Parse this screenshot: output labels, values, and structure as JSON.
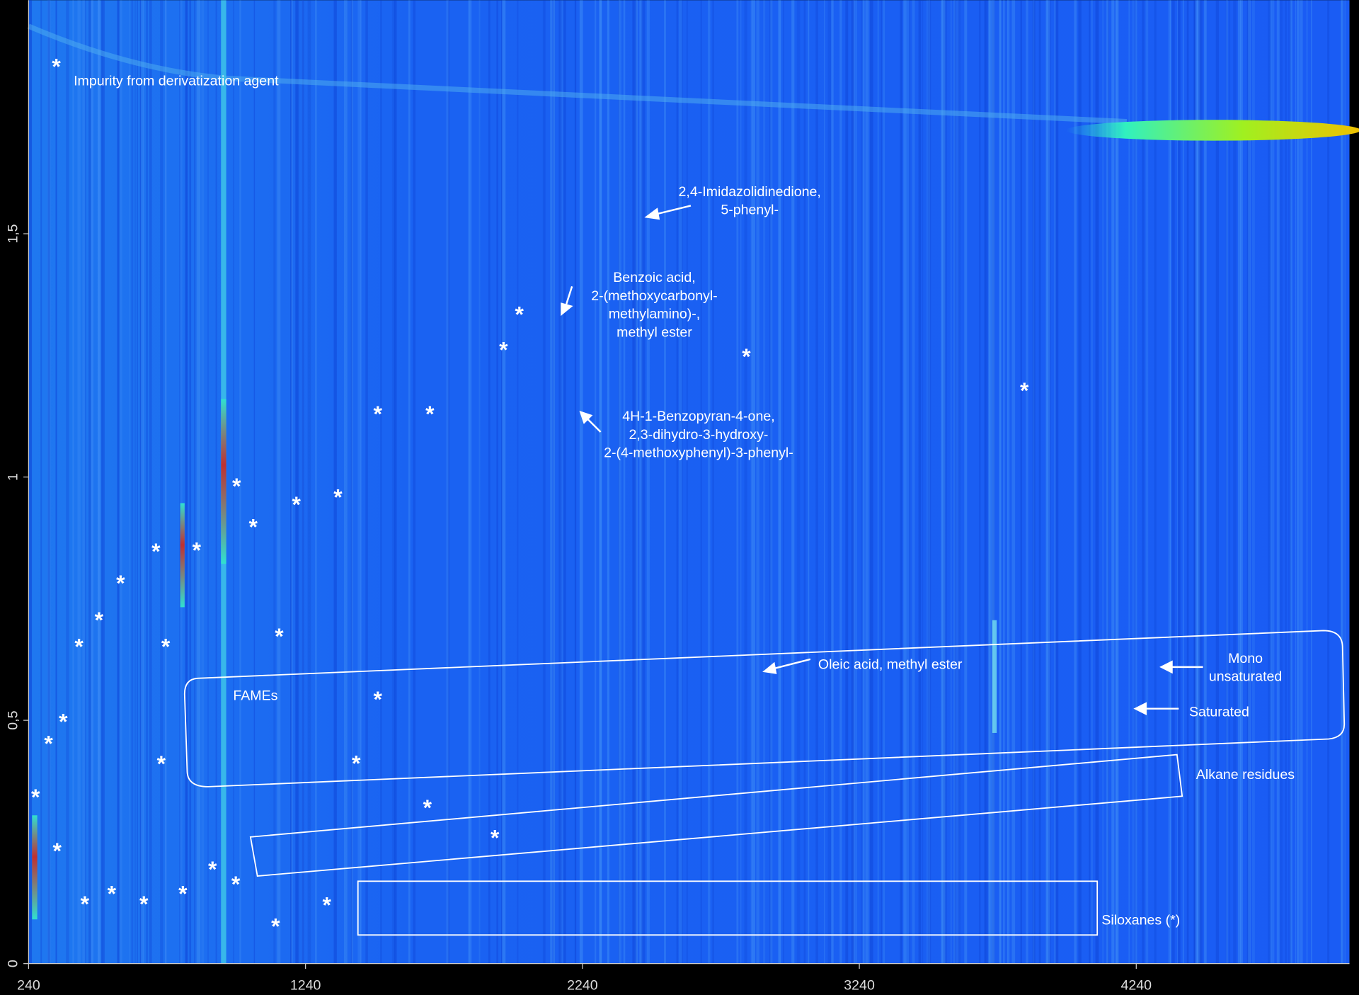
{
  "chart_data": {
    "type": "heatmap",
    "xlim": [
      240,
      5010
    ],
    "ylim": [
      0,
      1.98
    ],
    "xticks": [
      240,
      1240,
      2240,
      3240,
      4240
    ],
    "yticks": [
      0,
      {
        "value": 0.5,
        "label": "0,5"
      },
      1,
      {
        "value": 1.5,
        "label": "1,5"
      }
    ],
    "starred_peaks": {
      "label": "*",
      "x": [
        340,
        2012,
        1955,
        2832,
        3836,
        1501,
        1689,
        991,
        1207,
        1357,
        1051,
        700,
        847,
        572,
        494,
        422,
        735,
        1145,
        1501,
        365,
        312,
        719,
        1423,
        265,
        1680,
        1924,
        343,
        904,
        988,
        443,
        540,
        656,
        797,
        1317,
        1132
      ],
      "y": [
        1.846,
        1.337,
        1.264,
        1.25,
        1.18,
        1.132,
        1.132,
        0.984,
        0.946,
        0.961,
        0.9,
        0.85,
        0.852,
        0.784,
        0.709,
        0.654,
        0.654,
        0.675,
        0.546,
        0.5,
        0.455,
        0.413,
        0.414,
        0.345,
        0.323,
        0.261,
        0.234,
        0.196,
        0.166,
        0.125,
        0.146,
        0.125,
        0.146,
        0.123,
        0.079
      ]
    },
    "annotations": [
      {
        "lines": [
          "Impurity from derivatization agent"
        ]
      },
      {
        "lines": [
          "2,4-Imidazolidinedione,",
          "5-phenyl-"
        ]
      },
      {
        "lines": [
          "Benzoic acid,",
          "2-(methoxycarbonyl-",
          "methylamino)-,",
          "methyl ester"
        ]
      },
      {
        "lines": [
          "4H-1-Benzopyran-4-one,",
          "2,3-dihydro-3-hydroxy-",
          "2-(4-methoxyphenyl)-3-phenyl-"
        ]
      },
      {
        "lines": [
          "Oleic acid, methyl ester"
        ]
      },
      {
        "lines": [
          "Mono",
          "unsaturated"
        ]
      },
      {
        "lines": [
          "Saturated"
        ]
      },
      {
        "lines": [
          "FAMEs"
        ]
      },
      {
        "lines": [
          "Alkane residues"
        ]
      },
      {
        "lines": [
          "Siloxanes  (*)"
        ]
      }
    ]
  }
}
